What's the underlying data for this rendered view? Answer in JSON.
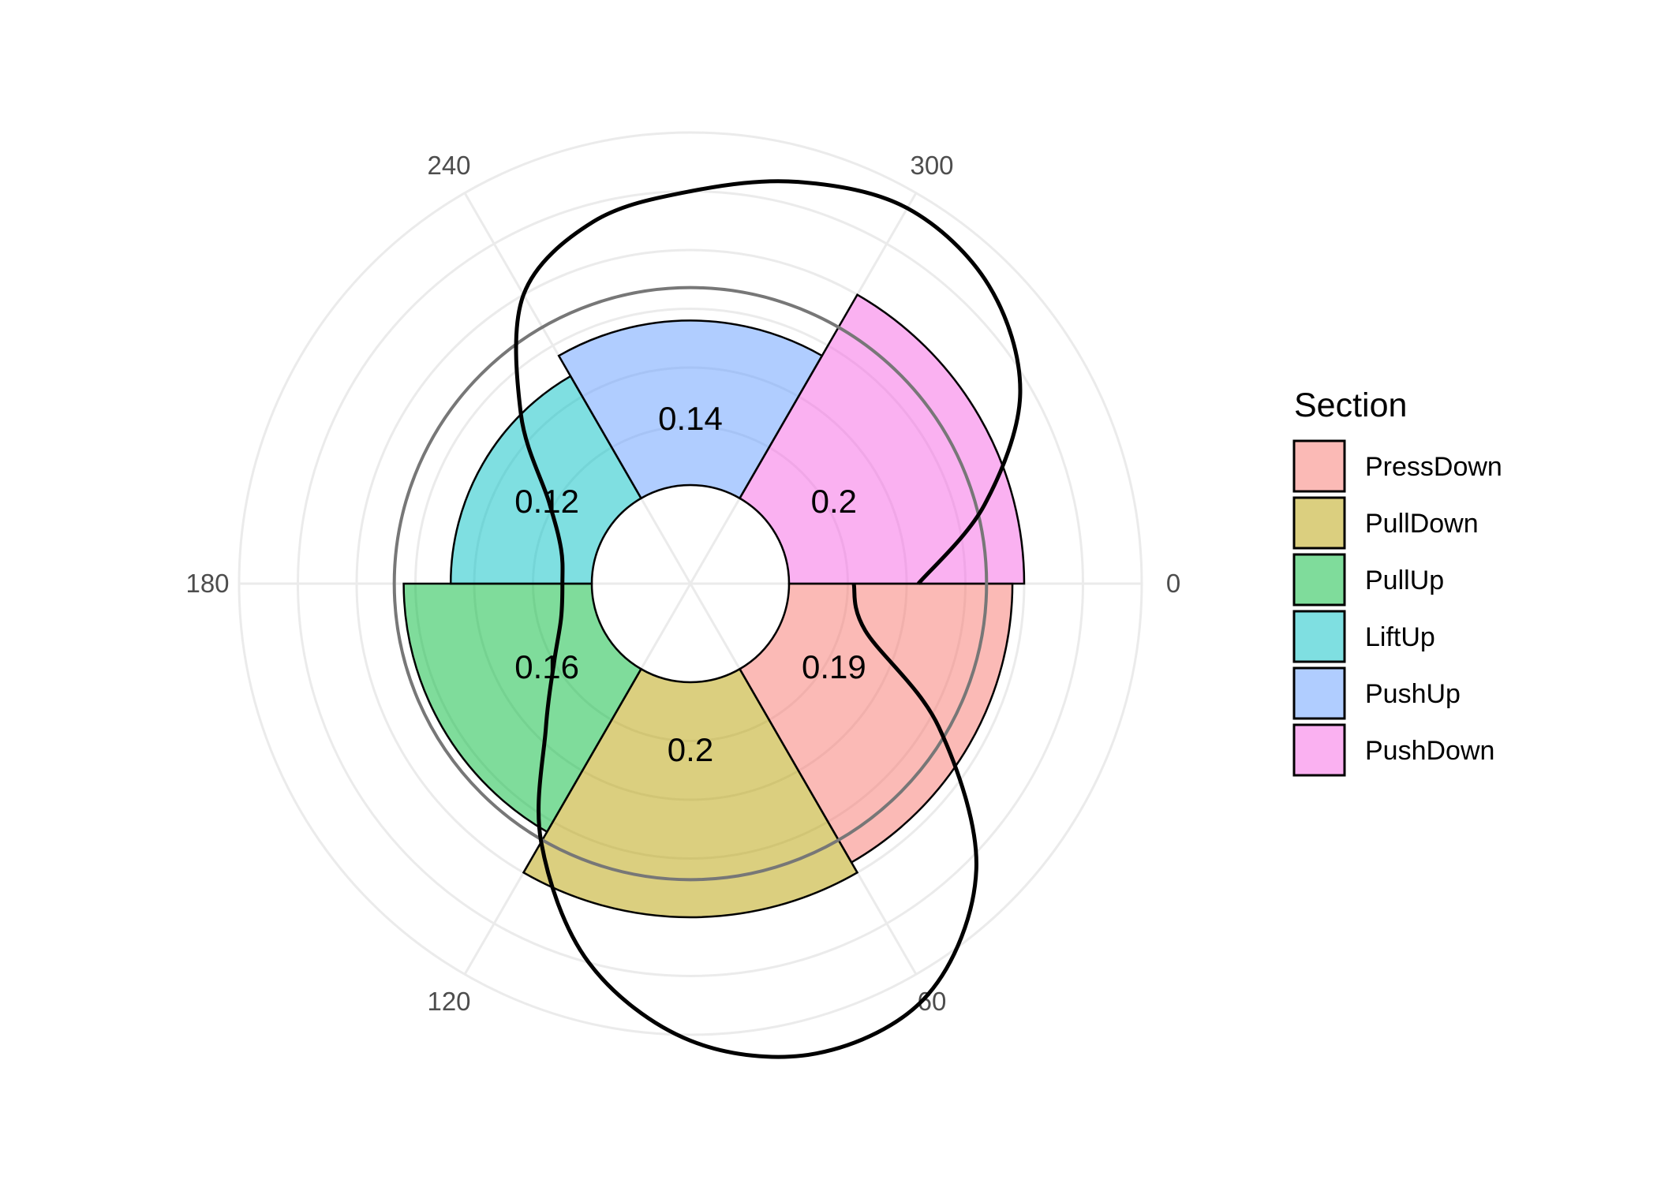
{
  "chart_data": {
    "type": "bar",
    "coordinates": "polar",
    "direction": "clockwise",
    "categories": [
      "PressDown",
      "PullDown",
      "PullUp",
      "LiftUp",
      "PushUp",
      "PushDown"
    ],
    "values": [
      0.19,
      0.2,
      0.16,
      0.12,
      0.14,
      0.2
    ],
    "value_labels": [
      "0.19",
      "0.2",
      "0.16",
      "0.12",
      "0.14",
      "0.2"
    ],
    "colors": [
      "#F8766D",
      "#B79F00",
      "#00BA38",
      "#00BFC4",
      "#619CFF",
      "#F564E3"
    ],
    "angle_ticks": [
      0,
      60,
      120,
      180,
      240,
      300
    ],
    "angle_tick_labels": [
      "0",
      "60",
      "120",
      "180",
      "240",
      "300"
    ],
    "reference_circle_value": 0.168,
    "radial_range": [
      -0.06,
      0.25
    ],
    "density_curve": {
      "color": "#000000",
      "angles_deg": [
        0,
        15,
        30,
        45,
        60,
        75,
        90,
        105,
        120,
        135,
        150,
        165,
        180,
        195,
        210,
        225,
        240,
        255,
        270,
        285,
        300,
        315,
        330,
        345,
        360
      ],
      "values": [
        0.055,
        0.07,
        0.16,
        0.26,
        0.32,
        0.33,
        0.305,
        0.25,
        0.17,
        0.09,
        0.05,
        0.03,
        0.025,
        0.03,
        0.055,
        0.12,
        0.2,
        0.235,
        0.25,
        0.27,
        0.285,
        0.275,
        0.24,
        0.175,
        0.11
      ]
    },
    "grid": true,
    "legend": {
      "title": "Section",
      "position": "right",
      "items": [
        "PressDown",
        "PullDown",
        "PullUp",
        "LiftUp",
        "PushUp",
        "PushDown"
      ]
    }
  }
}
